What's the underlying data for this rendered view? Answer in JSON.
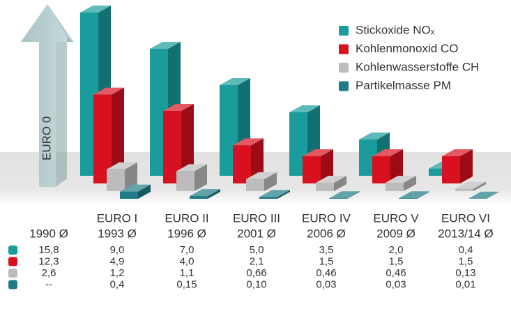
{
  "chart_data": {
    "type": "bar3d",
    "arrow_label": "EURO 0",
    "standards": [
      null,
      "EURO I",
      "EURO II",
      "EURO III",
      "EURO IV",
      "EURO V",
      "EURO VI"
    ],
    "categories": [
      "1990 Ø",
      "1993 Ø",
      "1996 Ø",
      "2001 Ø",
      "2006 Ø",
      "2009 Ø",
      "2013/14 Ø"
    ],
    "series": [
      {
        "name": "Stickoxide NOₓ",
        "color": "#1a9c9c",
        "values": [
          15.8,
          9.0,
          7.0,
          5.0,
          3.5,
          2.0,
          0.4
        ],
        "value_labels": [
          "15,8",
          "9,0",
          "7,0",
          "5,0",
          "3,5",
          "2,0",
          "0,4"
        ]
      },
      {
        "name": "Kohlenmonoxid CO",
        "color": "#d7111f",
        "values": [
          12.3,
          4.9,
          4.0,
          2.1,
          1.5,
          1.5,
          1.5
        ],
        "value_labels": [
          "12,3",
          "4,9",
          "4,0",
          "2,1",
          "1,5",
          "1,5",
          "1,5"
        ]
      },
      {
        "name": "Kohlenwasserstoffe CH",
        "color": "#bcbcbc",
        "values": [
          2.6,
          1.2,
          1.1,
          0.66,
          0.46,
          0.46,
          0.13
        ],
        "value_labels": [
          "2,6",
          "1,2",
          "1,1",
          "0,66",
          "0,46",
          "0,46",
          "0,13"
        ]
      },
      {
        "name": "Partikelmasse PM",
        "color": "#1e7b86",
        "values": [
          null,
          0.4,
          0.15,
          0.1,
          0.03,
          0.03,
          0.01
        ],
        "value_labels": [
          "--",
          "0,4",
          "0,15",
          "0,10",
          "0,03",
          "0,03",
          "0,01"
        ]
      }
    ]
  }
}
